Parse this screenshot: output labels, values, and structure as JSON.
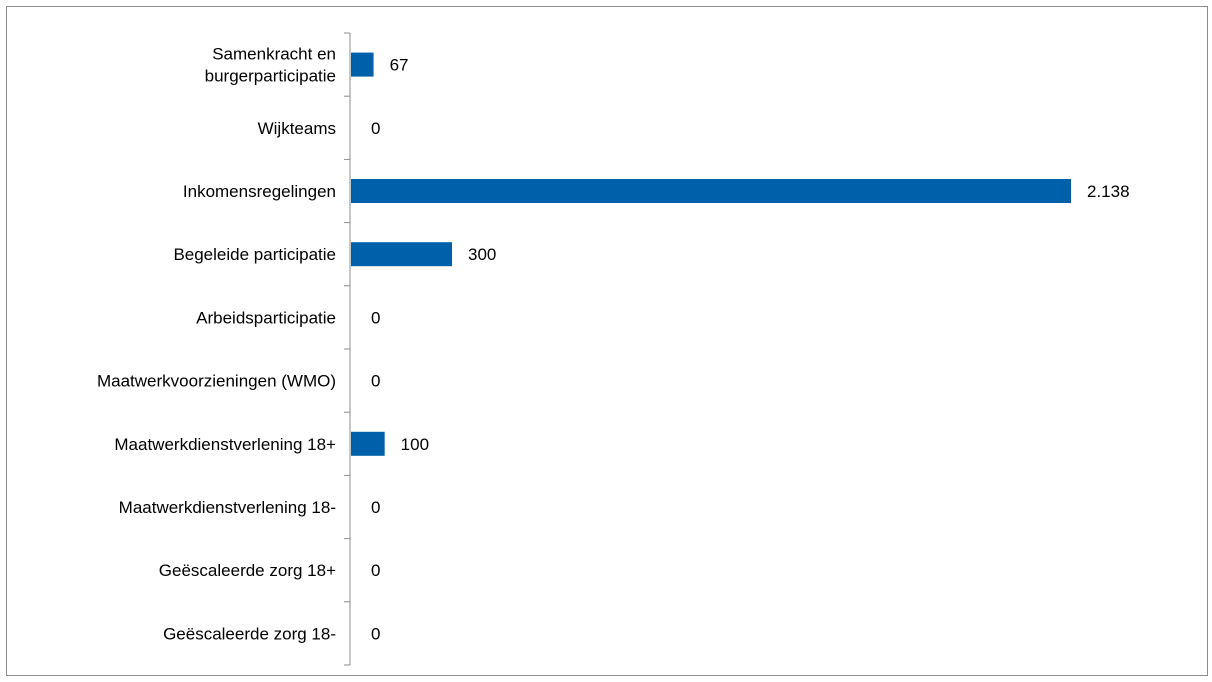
{
  "chart_data": {
    "type": "bar",
    "orientation": "horizontal",
    "title": "",
    "xlabel": "",
    "ylabel": "",
    "grid": false,
    "legend": "none",
    "bar_color": "#0060aa",
    "xlim": [
      0,
      2300
    ],
    "categories": [
      [
        "Samenkracht en",
        "burgerparticipatie"
      ],
      "Wijkteams",
      "Inkomensregelingen",
      "Begeleide participatie",
      "Arbeidsparticipatie",
      "Maatwerkvoorzieningen (WMO)",
      "Maatwerkdienstverlening 18+",
      "Maatwerkdienstverlening 18-",
      "Geëscaleerde zorg 18+",
      "Geëscaleerde zorg 18-"
    ],
    "values": [
      67,
      0,
      2138,
      300,
      0,
      0,
      100,
      0,
      0,
      0
    ],
    "value_labels": [
      "67",
      "0",
      "2.138",
      "300",
      "0",
      "0",
      "100",
      "0",
      "0",
      "0"
    ]
  }
}
